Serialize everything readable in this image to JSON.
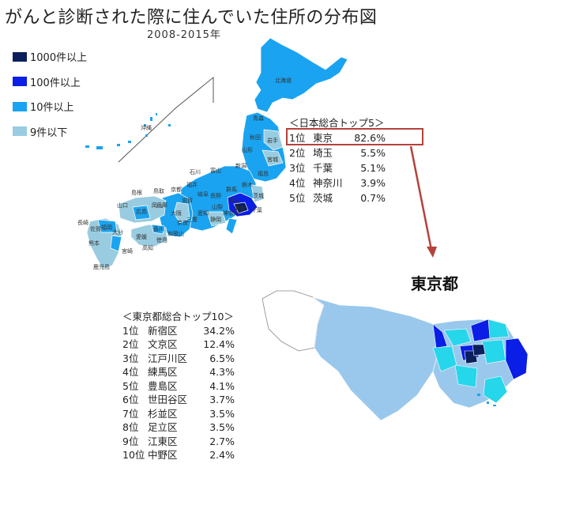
{
  "title": "がんと診断された際に住んでいた住所の分布図",
  "subtitle": "2008-2015年",
  "legend": {
    "items": [
      {
        "label": "1000件以上",
        "color": "#0a1f5c"
      },
      {
        "label": "100件以上",
        "color": "#0a1ee6"
      },
      {
        "label": "10件以上",
        "color": "#1aa3f0"
      },
      {
        "label": "9件以下",
        "color": "#99cce0"
      }
    ]
  },
  "japan_labels": {
    "hokkaido": "北海道",
    "aomori": "青森",
    "akita": "秋田",
    "iwate": "岩手",
    "yamagata": "山形",
    "miyagi": "宮城",
    "fukushima": "福島",
    "niigata": "新潟",
    "tochigi": "栃木",
    "ibaraki": "茨城",
    "gunma": "群馬",
    "saitama": "埼玉",
    "chiba": "千葉",
    "tokyo": "東京",
    "kanagawa": "神奈川",
    "yamanashi": "山梨",
    "nagano": "長野",
    "shizuoka": "静岡",
    "toyama": "富山",
    "ishikawa": "石川",
    "fukui": "福井",
    "gifu": "岐阜",
    "aichi": "愛知",
    "mie": "三重",
    "shiga": "滋賀",
    "kyoto": "京都",
    "osaka": "大阪",
    "hyogo": "兵庫",
    "nara": "奈良",
    "wakayama": "和歌山",
    "tottori": "鳥取",
    "shimane": "島根",
    "okayama": "岡山",
    "hiroshima": "広島",
    "yamaguchi": "山口",
    "kagawa": "香川",
    "tokushima": "徳島",
    "ehime": "愛媛",
    "kochi": "高知",
    "fukuoka": "福岡",
    "saga": "佐賀",
    "nagasaki": "長崎",
    "kumamoto": "熊本",
    "oita": "大分",
    "miyazaki": "宮崎",
    "kagoshima": "鹿児島",
    "okinawa": "沖縄"
  },
  "japan_top5": {
    "heading": "＜日本総合トップ5＞",
    "rows": [
      {
        "rank": "1位",
        "name": "東京",
        "pct": "82.6%"
      },
      {
        "rank": "2位",
        "name": "埼玉",
        "pct": "5.5%"
      },
      {
        "rank": "3位",
        "name": "千葉",
        "pct": "5.1%"
      },
      {
        "rank": "4位",
        "name": "神奈川",
        "pct": "3.9%"
      },
      {
        "rank": "5位",
        "name": "茨城",
        "pct": "0.7%"
      }
    ]
  },
  "tokyo_title": "東京都",
  "tokyo_top10": {
    "heading": "＜東京都総合トップ10＞",
    "rows": [
      {
        "rank": "1位",
        "name": "新宿区",
        "pct": "34.2%"
      },
      {
        "rank": "2位",
        "name": "文京区",
        "pct": "12.4%"
      },
      {
        "rank": "3位",
        "name": "江戸川区",
        "pct": "6.5%"
      },
      {
        "rank": "4位",
        "name": "練馬区",
        "pct": "4.3%"
      },
      {
        "rank": "5位",
        "name": "豊島区",
        "pct": "4.1%"
      },
      {
        "rank": "6位",
        "name": "世田谷区",
        "pct": "3.7%"
      },
      {
        "rank": "7位",
        "name": "杉並区",
        "pct": "3.5%"
      },
      {
        "rank": "8位",
        "name": "足立区",
        "pct": "3.5%"
      },
      {
        "rank": "9位",
        "name": "江東区",
        "pct": "2.7%"
      },
      {
        "rank": "10位",
        "name": "中野区",
        "pct": "2.4%"
      }
    ]
  },
  "colors": {
    "highlight_box": "#b5413c",
    "arrow": "#b5413c"
  }
}
